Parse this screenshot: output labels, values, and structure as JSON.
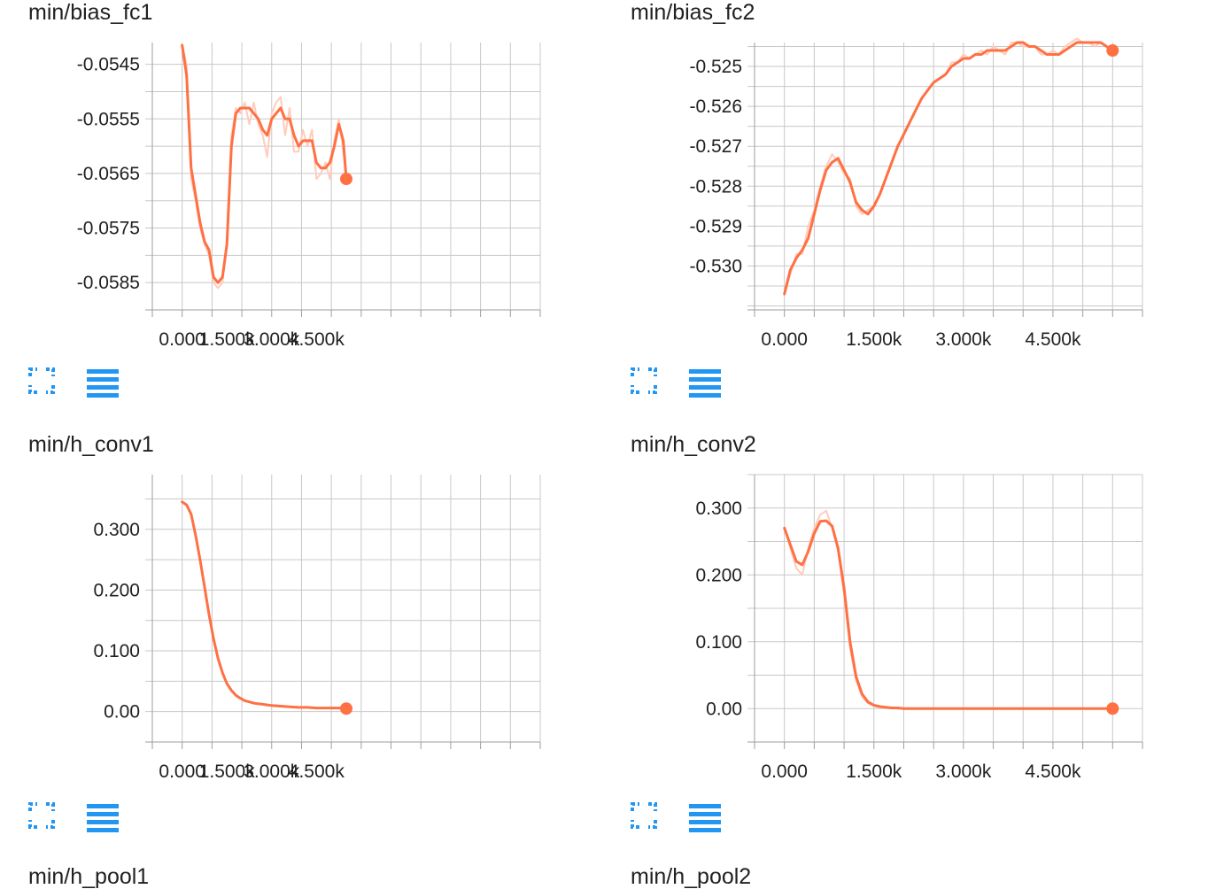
{
  "colors": {
    "line": "#ff7043",
    "raw": "#ffccbc",
    "grid": "#c8c8c8",
    "icon": "#2196f3"
  },
  "icons": {
    "expand": "fullscreen-icon",
    "data": "menu-lines-icon"
  },
  "chart_data": [
    {
      "type": "line",
      "title": "min/bias_fc1",
      "xlim": [
        -1000,
        12000
      ],
      "ylim": [
        -0.059,
        -0.0541
      ],
      "xticks": [
        0,
        1500,
        3000,
        4500
      ],
      "xtick_labels": [
        "0.000",
        "1.500k",
        "3.000k",
        "4.500k"
      ],
      "yticks": [
        -0.0545,
        -0.0555,
        -0.0565,
        -0.0575,
        -0.0585
      ],
      "ytick_labels": [
        "-0.0545",
        "-0.0555",
        "-0.0565",
        "-0.0575",
        "-0.0585"
      ],
      "x": [
        0,
        150,
        300,
        450,
        600,
        750,
        900,
        1050,
        1200,
        1350,
        1500,
        1650,
        1800,
        1950,
        2100,
        2250,
        2400,
        2550,
        2700,
        2850,
        3000,
        3150,
        3300,
        3450,
        3600,
        3750,
        3900,
        4050,
        4200,
        4350,
        4500,
        4650,
        4800,
        4950,
        5100,
        5250,
        5400,
        5500
      ],
      "y": [
        -0.05415,
        -0.0547,
        -0.0564,
        -0.0569,
        -0.0574,
        -0.05775,
        -0.0579,
        -0.0584,
        -0.0585,
        -0.0584,
        -0.0578,
        -0.056,
        -0.0554,
        -0.0553,
        -0.0553,
        -0.0553,
        -0.0554,
        -0.0555,
        -0.0557,
        -0.0558,
        -0.0555,
        -0.0554,
        -0.0553,
        -0.0555,
        -0.0555,
        -0.0558,
        -0.056,
        -0.0559,
        -0.0559,
        -0.0559,
        -0.0563,
        -0.0564,
        -0.0564,
        -0.0563,
        -0.056,
        -0.0556,
        -0.0559,
        -0.0566
      ],
      "raw": [
        -0.05415,
        -0.0545,
        -0.0566,
        -0.057,
        -0.0575,
        -0.0578,
        -0.058,
        -0.0585,
        -0.0586,
        -0.0585,
        -0.0577,
        -0.0558,
        -0.0553,
        -0.0554,
        -0.0552,
        -0.0556,
        -0.0552,
        -0.0556,
        -0.0558,
        -0.0562,
        -0.0554,
        -0.0552,
        -0.0551,
        -0.0558,
        -0.0553,
        -0.0561,
        -0.0561,
        -0.0557,
        -0.056,
        -0.0557,
        -0.0566,
        -0.0565,
        -0.0563,
        -0.0566,
        -0.0559,
        -0.0555,
        -0.0561,
        -0.0566
      ]
    },
    {
      "type": "line",
      "title": "min/bias_fc2",
      "xlim": [
        -500,
        6000
      ],
      "ylim": [
        -0.5311,
        -0.5244
      ],
      "xticks": [
        0,
        1500,
        3000,
        4500
      ],
      "xtick_labels": [
        "0.000",
        "1.500k",
        "3.000k",
        "4.500k"
      ],
      "yticks": [
        -0.525,
        -0.526,
        -0.527,
        -0.528,
        -0.529,
        -0.53
      ],
      "ytick_labels": [
        "-0.525",
        "-0.526",
        "-0.527",
        "-0.528",
        "-0.529",
        "-0.530"
      ],
      "x": [
        0,
        100,
        200,
        300,
        400,
        500,
        600,
        700,
        800,
        900,
        1000,
        1100,
        1200,
        1300,
        1400,
        1500,
        1600,
        1700,
        1800,
        1900,
        2000,
        2100,
        2200,
        2300,
        2400,
        2500,
        2600,
        2700,
        2800,
        2900,
        3000,
        3100,
        3200,
        3300,
        3400,
        3500,
        3600,
        3700,
        3800,
        3900,
        4000,
        4100,
        4200,
        4300,
        4400,
        4500,
        4600,
        4700,
        4800,
        4900,
        5000,
        5100,
        5200,
        5300,
        5400,
        5500
      ],
      "y": [
        -0.5307,
        -0.5301,
        -0.5298,
        -0.5296,
        -0.5293,
        -0.5287,
        -0.5281,
        -0.5276,
        -0.5274,
        -0.5273,
        -0.5276,
        -0.5279,
        -0.5284,
        -0.5286,
        -0.5287,
        -0.5285,
        -0.5282,
        -0.5278,
        -0.5274,
        -0.527,
        -0.5267,
        -0.5264,
        -0.5261,
        -0.5258,
        -0.5256,
        -0.5254,
        -0.5253,
        -0.5252,
        -0.525,
        -0.5249,
        -0.5248,
        -0.5248,
        -0.5247,
        -0.5247,
        -0.5246,
        -0.5246,
        -0.5246,
        -0.5246,
        -0.5245,
        -0.5244,
        -0.5244,
        -0.5245,
        -0.5245,
        -0.5246,
        -0.5247,
        -0.5247,
        -0.5247,
        -0.5246,
        -0.5245,
        -0.5244,
        -0.5244,
        -0.5244,
        -0.5244,
        -0.5244,
        -0.5245,
        -0.5246
      ],
      "raw": [
        -0.5307,
        -0.5302,
        -0.5297,
        -0.5297,
        -0.529,
        -0.5286,
        -0.528,
        -0.5275,
        -0.5272,
        -0.5274,
        -0.5277,
        -0.5278,
        -0.5285,
        -0.5287,
        -0.5286,
        -0.5285,
        -0.5282,
        -0.5278,
        -0.5274,
        -0.527,
        -0.5267,
        -0.5264,
        -0.5261,
        -0.5258,
        -0.5256,
        -0.5254,
        -0.5253,
        -0.5252,
        -0.5249,
        -0.5249,
        -0.5247,
        -0.5248,
        -0.5247,
        -0.5246,
        -0.5247,
        -0.5245,
        -0.5246,
        -0.5247,
        -0.5244,
        -0.5244,
        -0.5245,
        -0.5245,
        -0.5245,
        -0.5247,
        -0.5247,
        -0.5246,
        -0.5247,
        -0.5245,
        -0.5244,
        -0.5243,
        -0.5244,
        -0.5244,
        -0.5245,
        -0.5244,
        -0.5245,
        -0.5246
      ]
    },
    {
      "type": "line",
      "title": "min/h_conv1",
      "xlim": [
        -1000,
        12000
      ],
      "ylim": [
        -0.05,
        0.39
      ],
      "xticks": [
        0,
        1500,
        3000,
        4500
      ],
      "xtick_labels": [
        "0.000",
        "1.500k",
        "3.000k",
        "4.500k"
      ],
      "yticks": [
        0.3,
        0.2,
        0.1,
        0.0
      ],
      "ytick_labels": [
        "0.300",
        "0.200",
        "0.100",
        "0.00"
      ],
      "x": [
        0,
        150,
        300,
        450,
        600,
        750,
        900,
        1050,
        1200,
        1350,
        1500,
        1650,
        1800,
        1950,
        2100,
        2250,
        2400,
        2550,
        2700,
        2850,
        3000,
        3300,
        3600,
        3900,
        4200,
        4500,
        4800,
        5100,
        5400,
        5500
      ],
      "y": [
        0.345,
        0.34,
        0.325,
        0.29,
        0.25,
        0.205,
        0.16,
        0.12,
        0.088,
        0.064,
        0.046,
        0.035,
        0.027,
        0.022,
        0.018,
        0.016,
        0.014,
        0.013,
        0.012,
        0.011,
        0.01,
        0.009,
        0.008,
        0.007,
        0.007,
        0.006,
        0.006,
        0.006,
        0.006,
        0.005
      ]
    },
    {
      "type": "line",
      "title": "min/h_conv2",
      "xlim": [
        -500,
        6000
      ],
      "ylim": [
        -0.05,
        0.35
      ],
      "xticks": [
        0,
        1500,
        3000,
        4500
      ],
      "xtick_labels": [
        "0.000",
        "1.500k",
        "3.000k",
        "4.500k"
      ],
      "yticks": [
        0.3,
        0.2,
        0.1,
        0.0
      ],
      "ytick_labels": [
        "0.300",
        "0.200",
        "0.100",
        "0.00"
      ],
      "x": [
        0,
        100,
        200,
        300,
        400,
        500,
        600,
        700,
        800,
        900,
        1000,
        1100,
        1200,
        1300,
        1400,
        1500,
        1600,
        1700,
        1800,
        1900,
        2000,
        2500,
        3000,
        3500,
        4000,
        4500,
        5000,
        5500
      ],
      "y": [
        0.27,
        0.245,
        0.22,
        0.215,
        0.235,
        0.262,
        0.28,
        0.281,
        0.273,
        0.24,
        0.18,
        0.1,
        0.048,
        0.022,
        0.01,
        0.005,
        0.003,
        0.002,
        0.001,
        0.001,
        0.0,
        0.0,
        0.0,
        0.0,
        0.0,
        0.0,
        0.0,
        0.0
      ],
      "raw": [
        0.272,
        0.24,
        0.21,
        0.2,
        0.24,
        0.27,
        0.29,
        0.296,
        0.27,
        0.235,
        0.17,
        0.09,
        0.042,
        0.018,
        0.008,
        0.004,
        0.002,
        0.001,
        0.001,
        0.0,
        0.0,
        0.0,
        0.0,
        0.0,
        0.0,
        0.0,
        0.0,
        0.0
      ]
    }
  ],
  "partial_titles": [
    "min/h_pool1",
    "min/h_pool2"
  ]
}
